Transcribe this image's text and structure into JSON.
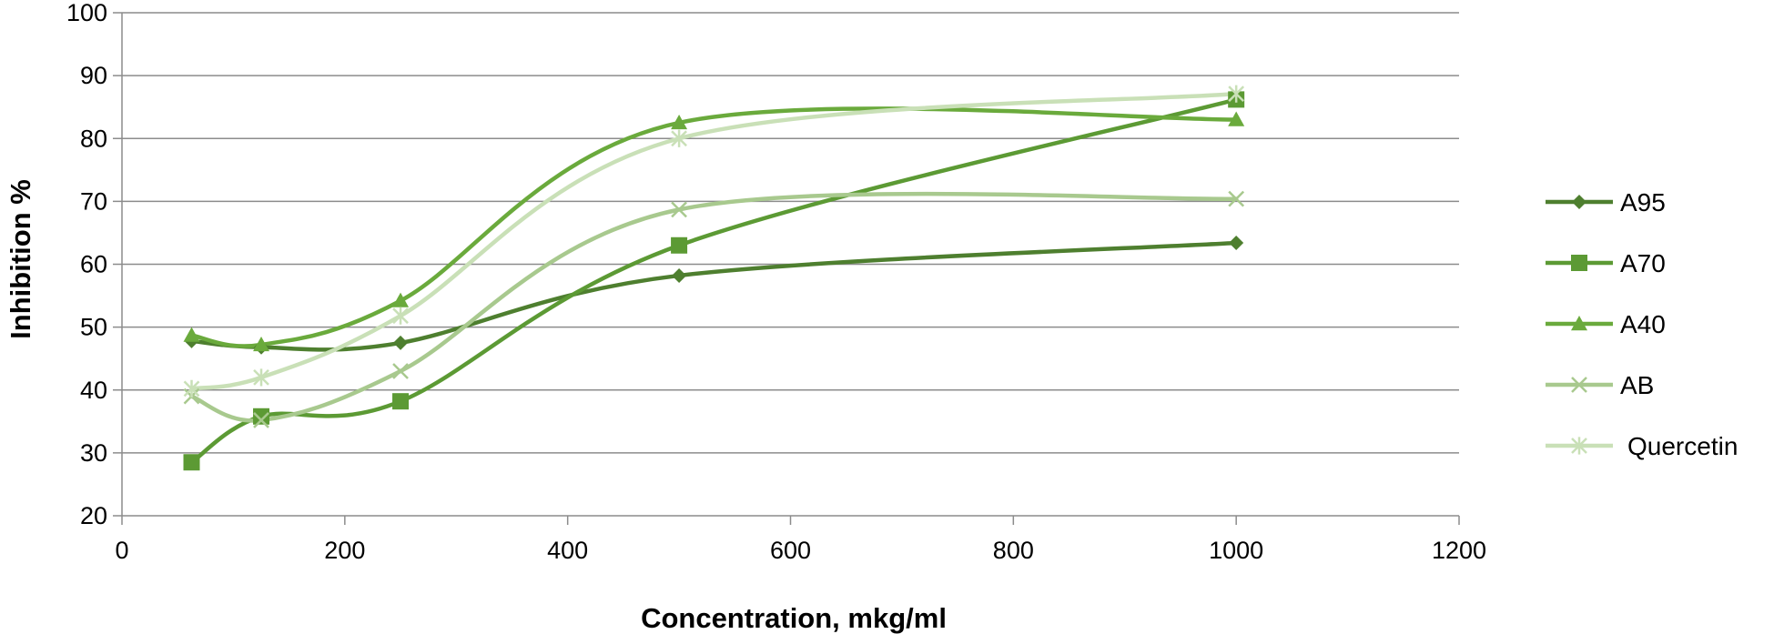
{
  "chart_data": {
    "type": "line",
    "xlabel": "Concentration, mkg/ml",
    "ylabel": "Inhibition %",
    "xlim": [
      0,
      1200
    ],
    "ylim": [
      20,
      100
    ],
    "xticks": [
      0,
      200,
      400,
      600,
      800,
      1000,
      1200
    ],
    "yticks": [
      20,
      30,
      40,
      50,
      60,
      70,
      80,
      90,
      100
    ],
    "xtick_labels": [
      "0",
      "200",
      "400",
      "600",
      "800",
      "1000",
      "1200"
    ],
    "ytick_labels": [
      "20",
      "30",
      "40",
      "50",
      "60",
      "70",
      "80",
      "90",
      "100"
    ],
    "grid": "horizontal",
    "legend_position": "right",
    "smooth": true,
    "x": [
      62.5,
      125,
      250,
      500,
      1000
    ],
    "series": [
      {
        "name": "A95",
        "values": [
          47.8,
          46.8,
          47.5,
          58.2,
          63.4
        ],
        "color": "#4e7f2f",
        "marker": "diamond"
      },
      {
        "name": "A70",
        "values": [
          28.5,
          35.8,
          38.2,
          63.0,
          86.2
        ],
        "color": "#5c9a34",
        "marker": "square"
      },
      {
        "name": "A40",
        "values": [
          48.7,
          47.2,
          54.2,
          82.5,
          83.0
        ],
        "color": "#6aaa3c",
        "marker": "triangle"
      },
      {
        "name": "AB",
        "values": [
          39.0,
          35.2,
          43.0,
          68.7,
          70.4
        ],
        "color": "#a8c98e",
        "marker": "x"
      },
      {
        "name": "Quercetin",
        "values": [
          40.2,
          42.0,
          51.8,
          80.0,
          87.1
        ],
        "color": "#c9e0b7",
        "marker": "star"
      }
    ]
  }
}
